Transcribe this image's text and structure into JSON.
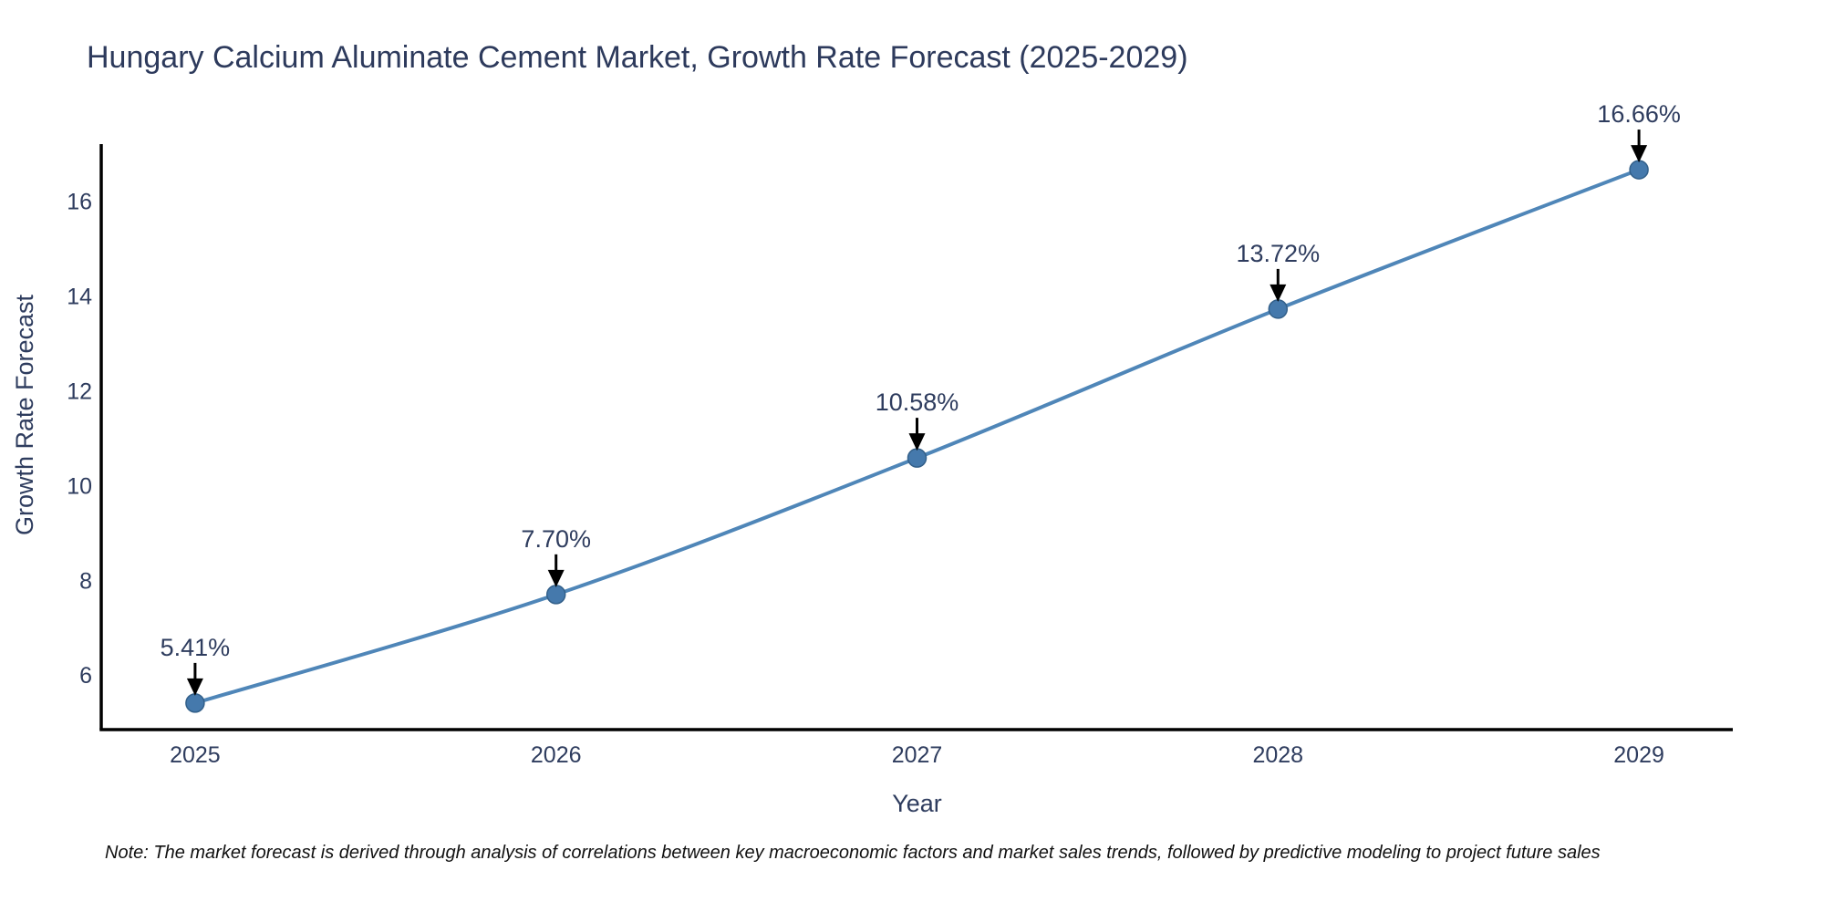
{
  "page": {
    "note": "Note: The market forecast is derived through analysis of correlations between key macroeconomic factors and market sales trends, followed by predictive modeling to project future sales"
  },
  "chart_data": {
    "type": "line",
    "title": "Hungary Calcium Aluminate Cement Market, Growth Rate Forecast (2025-2029)",
    "xlabel": "Year",
    "ylabel": "Growth Rate Forecast",
    "x": [
      2025,
      2026,
      2027,
      2028,
      2029
    ],
    "series": [
      {
        "name": "Growth Rate Forecast",
        "values": [
          5.41,
          7.7,
          10.58,
          13.72,
          16.66
        ]
      }
    ],
    "point_labels": [
      "5.41%",
      "7.70%",
      "10.58%",
      "13.72%",
      "16.66%"
    ],
    "x_tick_labels": [
      "2025",
      "2026",
      "2027",
      "2028",
      "2029"
    ],
    "y_tick_values": [
      6,
      8,
      10,
      12,
      14,
      16
    ],
    "xlim": [
      2024.74,
      2029.26
    ],
    "ylim": [
      4.85,
      17.2
    ],
    "line_shape": "spline",
    "grid": false,
    "legend_position": "none",
    "colors": {
      "line": "#4f86b8",
      "marker_fill": "#4579ac",
      "marker_edge": "#33608a",
      "axis_line": "#000000",
      "tick_label": "#2e3c5e",
      "title": "#2d3a5c",
      "annotation_text": "#2e3c5e",
      "annotation_arrow": "#000000",
      "note": "#111111",
      "background": "#ffffff"
    }
  }
}
